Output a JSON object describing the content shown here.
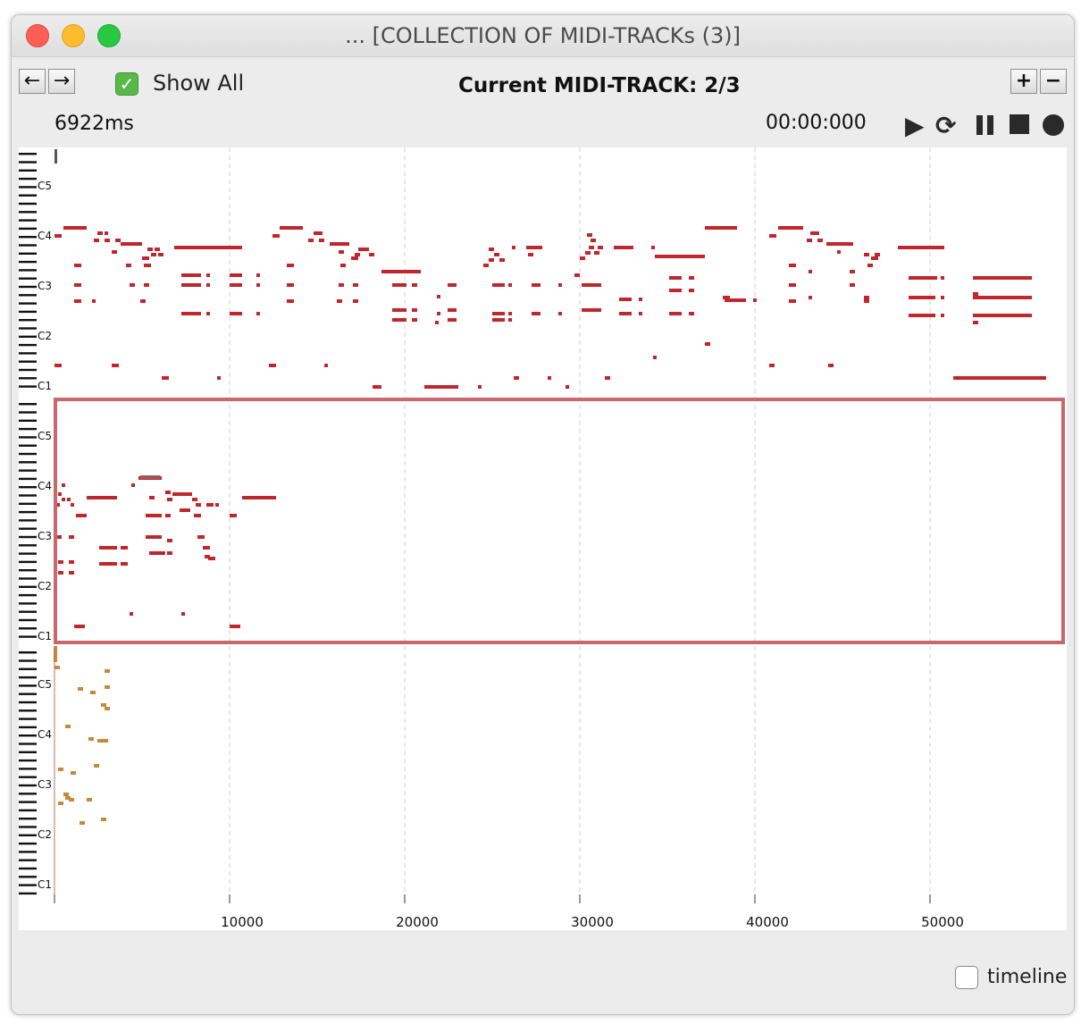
{
  "window": {
    "title": "... [COLLECTION OF MIDI-TRACKs (3)]"
  },
  "toolbar": {
    "prev_icon": "arrow-left-icon",
    "next_icon": "arrow-right-icon",
    "show_all_label": "Show All",
    "show_all_checked": true,
    "current_track_label": "Current MIDI-TRACK: 2/3",
    "add_icon": "plus-icon",
    "remove_icon": "minus-icon"
  },
  "transport": {
    "duration": "6922ms",
    "position": "00:00:000",
    "icons": [
      "play-icon",
      "loop-icon",
      "pause-icon",
      "stop-icon",
      "record-icon"
    ]
  },
  "piano_roll": {
    "track_labels": [
      "C5",
      "C4",
      "C3",
      "C2",
      "C1"
    ],
    "x_ticks": [
      10000,
      20000,
      30000,
      40000,
      50000
    ],
    "x_tick_labels": [
      "10000",
      "20000",
      "30000",
      "40000",
      "50000"
    ],
    "track_colors": [
      "#c0272d",
      "#c0272d",
      "#c8883a"
    ],
    "selected_track_border": "#c9676b",
    "selected_track": 2
  },
  "footer": {
    "timeline_label": "timeline",
    "timeline_checked": false
  }
}
